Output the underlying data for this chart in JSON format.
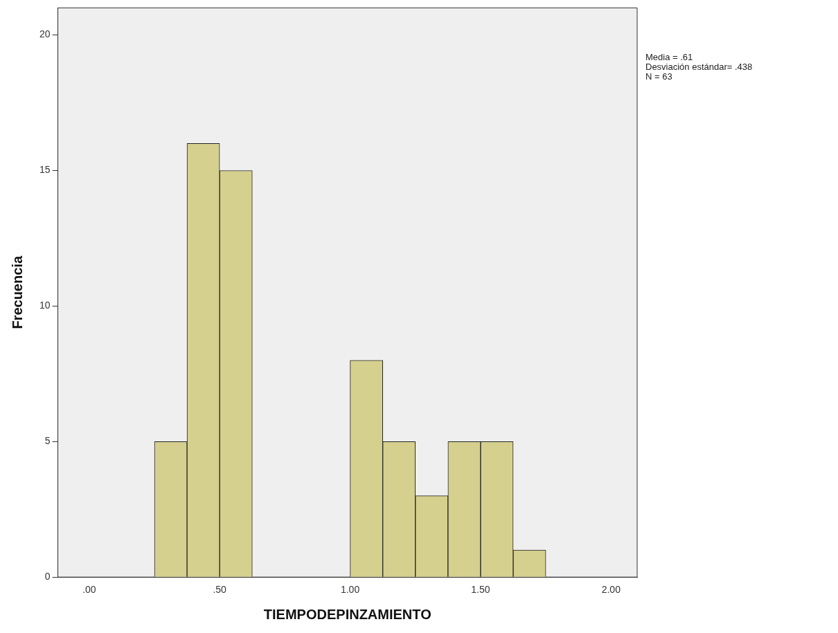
{
  "chart_data": {
    "type": "histogram",
    "xlabel": "TIEMPODEPINZAMIENTO",
    "ylabel": "Frecuencia",
    "bins": [
      0.25,
      0.375,
      0.5,
      0.625,
      0.75,
      0.875,
      1.0,
      1.125,
      1.25,
      1.375,
      1.5,
      1.625,
      1.75
    ],
    "values": [
      5,
      16,
      15,
      0,
      0,
      0,
      8,
      5,
      3,
      5,
      5,
      1
    ],
    "color": "#d6d08f",
    "xlim": [
      -0.12,
      2.1
    ],
    "xticks": [
      {
        "value": 0,
        "label": ".00"
      },
      {
        "value": 0.5,
        "label": ".50"
      },
      {
        "value": 1,
        "label": "1.00"
      },
      {
        "value": 1.5,
        "label": "1.50"
      },
      {
        "value": 2,
        "label": "2.00"
      }
    ],
    "ylim": [
      0,
      21
    ],
    "yticks": [
      0,
      5,
      10,
      15,
      20
    ],
    "grid": false,
    "legend": false,
    "annotations": [
      "Media = .61",
      "Desviación estándar= .438",
      "N = 63"
    ]
  }
}
